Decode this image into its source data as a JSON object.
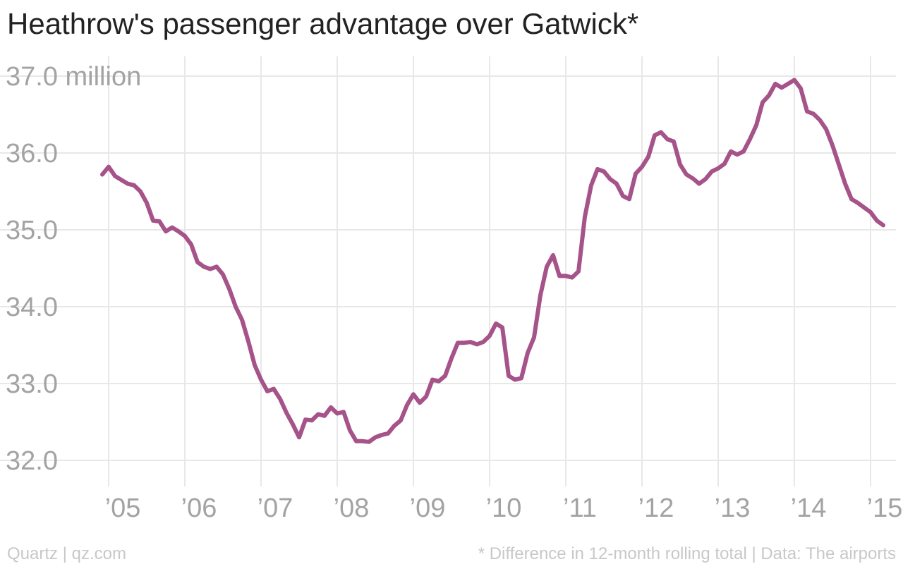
{
  "title": "Heathrow's passenger advantage over Gatwick*",
  "footer": {
    "left": "Quartz | qz.com",
    "right": "* Difference in 12-month rolling total | Data: The airports"
  },
  "colors": {
    "line": "#a55389",
    "grid": "#e8e8e8",
    "tick_text": "#a3a3a3"
  },
  "chart_data": {
    "type": "line",
    "title": "Heathrow's passenger advantage over Gatwick*",
    "ylim": [
      32.0,
      37.0
    ],
    "xlim": [
      2004.92,
      2015.25
    ],
    "grid": true,
    "yticks": [
      {
        "value": 37.0,
        "label": "37.0 million"
      },
      {
        "value": 36.0,
        "label": "36.0"
      },
      {
        "value": 35.0,
        "label": "35.0"
      },
      {
        "value": 34.0,
        "label": "34.0"
      },
      {
        "value": 33.0,
        "label": "33.0"
      },
      {
        "value": 32.0,
        "label": "32.0"
      }
    ],
    "xticks": [
      {
        "value": 2005,
        "label": "’05"
      },
      {
        "value": 2006,
        "label": "’06"
      },
      {
        "value": 2007,
        "label": "’07"
      },
      {
        "value": 2008,
        "label": "’08"
      },
      {
        "value": 2009,
        "label": "’09"
      },
      {
        "value": 2010,
        "label": "’10"
      },
      {
        "value": 2011,
        "label": "’11"
      },
      {
        "value": 2012,
        "label": "’12"
      },
      {
        "value": 2013,
        "label": "’13"
      },
      {
        "value": 2014,
        "label": "’14"
      },
      {
        "value": 2015,
        "label": "’15"
      }
    ],
    "series": [
      {
        "x": [
          2004.917,
          2005.0,
          2005.083,
          2005.167,
          2005.25,
          2005.333,
          2005.417,
          2005.5,
          2005.583,
          2005.667,
          2005.75,
          2005.833,
          2005.917,
          2006.0,
          2006.083,
          2006.167,
          2006.25,
          2006.333,
          2006.417,
          2006.5,
          2006.583,
          2006.667,
          2006.75,
          2006.833,
          2006.917,
          2007.0,
          2007.083,
          2007.167,
          2007.25,
          2007.333,
          2007.417,
          2007.5,
          2007.583,
          2007.667,
          2007.75,
          2007.833,
          2007.917,
          2008.0,
          2008.083,
          2008.167,
          2008.25,
          2008.333,
          2008.417,
          2008.5,
          2008.583,
          2008.667,
          2008.75,
          2008.833,
          2008.917,
          2009.0,
          2009.083,
          2009.167,
          2009.25,
          2009.333,
          2009.417,
          2009.5,
          2009.583,
          2009.667,
          2009.75,
          2009.833,
          2009.917,
          2010.0,
          2010.083,
          2010.167,
          2010.25,
          2010.333,
          2010.417,
          2010.5,
          2010.583,
          2010.667,
          2010.75,
          2010.833,
          2010.917,
          2011.0,
          2011.083,
          2011.167,
          2011.25,
          2011.333,
          2011.417,
          2011.5,
          2011.583,
          2011.667,
          2011.75,
          2011.833,
          2011.917,
          2012.0,
          2012.083,
          2012.167,
          2012.25,
          2012.333,
          2012.417,
          2012.5,
          2012.583,
          2012.667,
          2012.75,
          2012.833,
          2012.917,
          2013.0,
          2013.083,
          2013.167,
          2013.25,
          2013.333,
          2013.417,
          2013.5,
          2013.583,
          2013.667,
          2013.75,
          2013.833,
          2013.917,
          2014.0,
          2014.083,
          2014.167,
          2014.25,
          2014.333,
          2014.417,
          2014.5,
          2014.583,
          2014.667,
          2014.75,
          2014.833,
          2014.917,
          2015.0,
          2015.083,
          2015.167
        ],
        "values": [
          35.72,
          35.82,
          35.7,
          35.65,
          35.6,
          35.58,
          35.5,
          35.35,
          35.12,
          35.11,
          34.98,
          35.03,
          34.98,
          34.92,
          34.81,
          34.58,
          34.52,
          34.49,
          34.52,
          34.42,
          34.23,
          34.0,
          33.83,
          33.55,
          33.24,
          33.05,
          32.9,
          32.93,
          32.8,
          32.62,
          32.47,
          32.3,
          32.53,
          32.52,
          32.6,
          32.58,
          32.69,
          32.61,
          32.63,
          32.39,
          32.25,
          32.25,
          32.24,
          32.3,
          32.33,
          32.35,
          32.45,
          32.52,
          32.72,
          32.86,
          32.75,
          32.83,
          33.05,
          33.03,
          33.1,
          33.33,
          33.53,
          33.53,
          33.54,
          33.51,
          33.54,
          33.62,
          33.78,
          33.73,
          33.1,
          33.05,
          33.07,
          33.4,
          33.6,
          34.15,
          34.52,
          34.67,
          34.4,
          34.4,
          34.38,
          34.46,
          35.17,
          35.58,
          35.79,
          35.76,
          35.66,
          35.6,
          35.44,
          35.4,
          35.73,
          35.82,
          35.95,
          36.23,
          36.27,
          36.18,
          36.15,
          35.85,
          35.72,
          35.67,
          35.6,
          35.66,
          35.76,
          35.8,
          35.86,
          36.02,
          35.98,
          36.02,
          36.18,
          36.36,
          36.66,
          36.75,
          36.9,
          36.85,
          36.9,
          36.95,
          36.84,
          36.54,
          36.51,
          36.43,
          36.31,
          36.1,
          35.85,
          35.6,
          35.4,
          35.35,
          35.29,
          35.23,
          35.12,
          35.06
        ]
      }
    ]
  }
}
